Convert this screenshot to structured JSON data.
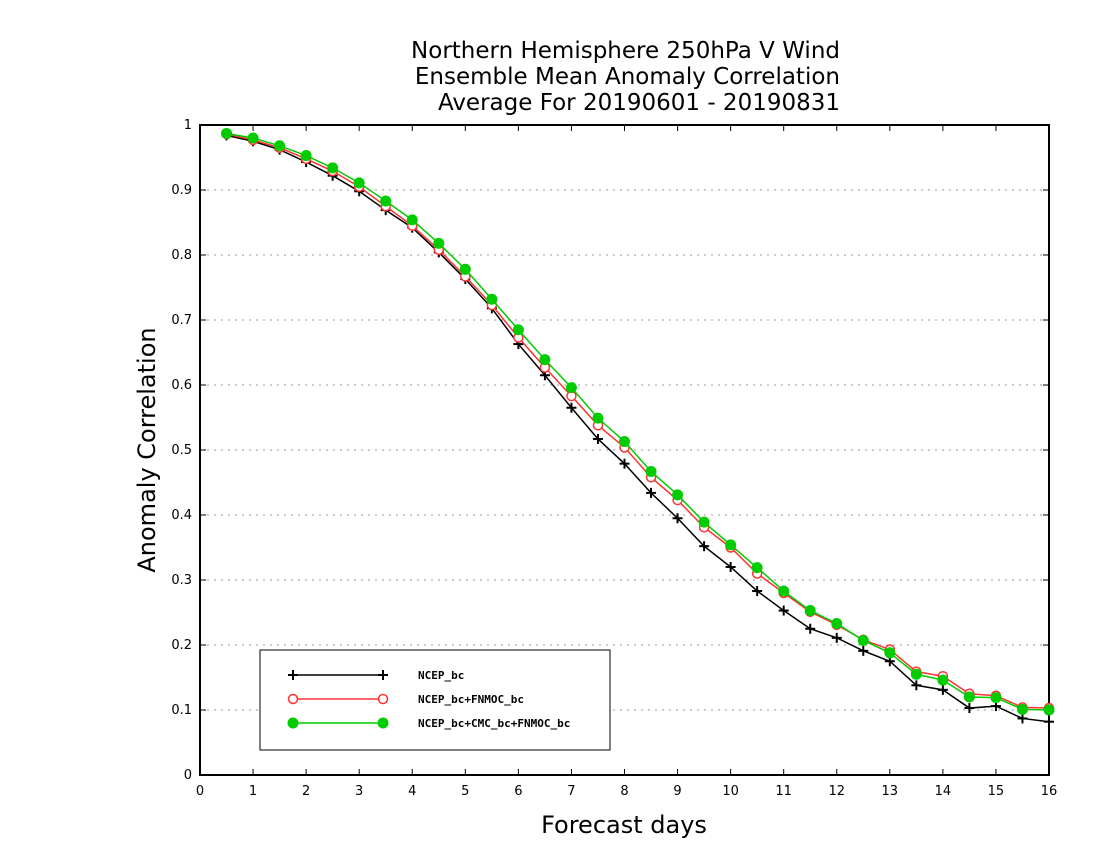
{
  "chart_data": {
    "type": "line",
    "title": [
      "Northern Hemisphere 250hPa V Wind",
      "Ensemble Mean Anomaly Correlation",
      "Average For 20190601 - 20190831"
    ],
    "xlabel": "Forecast days",
    "ylabel": "Anomaly Correlation",
    "xlim": [
      0,
      16
    ],
    "ylim": [
      0,
      1
    ],
    "xticks": [
      "0",
      "1",
      "2",
      "3",
      "4",
      "5",
      "6",
      "7",
      "8",
      "9",
      "10",
      "11",
      "12",
      "13",
      "14",
      "15",
      "16"
    ],
    "yticks": [
      "0",
      "0.1",
      "0.2",
      "0.3",
      "0.4",
      "0.5",
      "0.6",
      "0.7",
      "0.8",
      "0.9",
      "1"
    ],
    "grid": "horizontal dotted",
    "legend_position": "bottom-left",
    "x": [
      0.5,
      1,
      1.5,
      2,
      2.5,
      3,
      3.5,
      4,
      4.5,
      5,
      5.5,
      6,
      6.5,
      7,
      7.5,
      8,
      8.5,
      9,
      9.5,
      10,
      10.5,
      11,
      11.5,
      12,
      12.5,
      13,
      13.5,
      14,
      14.5,
      15,
      15.5,
      16
    ],
    "series": [
      {
        "name": "NCEP_bc",
        "color": "#000000",
        "marker": "plus",
        "values": [
          0.984,
          0.975,
          0.962,
          0.943,
          0.922,
          0.898,
          0.869,
          0.842,
          0.804,
          0.763,
          0.718,
          0.663,
          0.615,
          0.565,
          0.517,
          0.479,
          0.434,
          0.395,
          0.352,
          0.32,
          0.283,
          0.253,
          0.225,
          0.211,
          0.191,
          0.175,
          0.138,
          0.131,
          0.103,
          0.106,
          0.087,
          0.082
        ]
      },
      {
        "name": "NCEP_bc+FNMOC_bc",
        "color": "#ff3333",
        "marker": "open-circle",
        "values": [
          0.986,
          0.977,
          0.965,
          0.948,
          0.929,
          0.905,
          0.875,
          0.845,
          0.808,
          0.767,
          0.723,
          0.673,
          0.627,
          0.583,
          0.538,
          0.504,
          0.458,
          0.423,
          0.381,
          0.35,
          0.31,
          0.28,
          0.251,
          0.231,
          0.208,
          0.193,
          0.159,
          0.152,
          0.125,
          0.122,
          0.104,
          0.103
        ]
      },
      {
        "name": "NCEP_bc+CMC_bc+FNMOC_bc",
        "color": "#00cc00",
        "marker": "filled-circle",
        "values": [
          0.987,
          0.98,
          0.968,
          0.953,
          0.934,
          0.911,
          0.883,
          0.854,
          0.818,
          0.778,
          0.732,
          0.685,
          0.639,
          0.596,
          0.549,
          0.513,
          0.467,
          0.431,
          0.389,
          0.354,
          0.319,
          0.283,
          0.253,
          0.233,
          0.207,
          0.188,
          0.155,
          0.146,
          0.12,
          0.119,
          0.101,
          0.1
        ]
      }
    ]
  }
}
